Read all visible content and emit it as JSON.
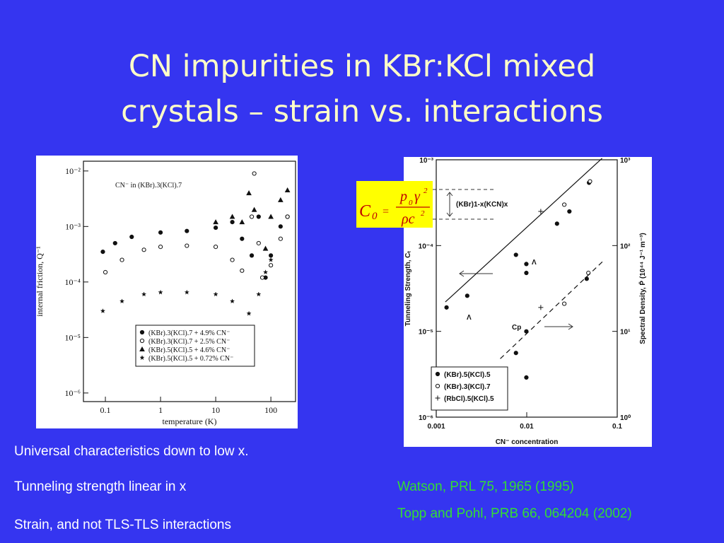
{
  "title_lines": [
    "CN impurities in KBr:KCl mixed",
    "crystals – strain vs. interactions"
  ],
  "bullets": [
    "Universal characteristics down to low x.",
    "Tunneling strength linear in x",
    "Strain, and not TLS-TLS interactions"
  ],
  "references": [
    "Watson, PRL 75, 1965 (1995)",
    "Topp and Pohl, PRB 66, 064204 (2002)"
  ],
  "formula": {
    "lhs": "C",
    "lhs_sub": "0",
    "equals": "=",
    "num_a": "p",
    "num_sub": "0",
    "num_b": "γ",
    "num_sup": "2",
    "den_a": "ρc",
    "den_sup": "2"
  },
  "chart_data": [
    {
      "type": "scatter",
      "xlabel": "temperature (K)",
      "ylabel": "internal friction, Q⁻¹",
      "annotation": "CN⁻ in (KBr).3(KCl).7",
      "log_x": true,
      "log_y": true,
      "legend": "lower center",
      "xlim": [
        0.04,
        280
      ],
      "ylim": [
        7e-07,
        0.015
      ],
      "xticks": [
        0.1,
        1,
        10,
        100
      ],
      "yticks": [
        {
          "value": 1e-06,
          "label": "10⁻⁶"
        },
        {
          "value": 1e-05,
          "label": "10⁻⁵"
        },
        {
          "value": 0.0001,
          "label": "10⁻⁴"
        },
        {
          "value": 0.001,
          "label": "10⁻³"
        },
        {
          "value": 0.01,
          "label": "10⁻²"
        }
      ],
      "series": [
        {
          "name": "(KBr).3(KCl).7 + 4.9% CN⁻",
          "marker": "filled-circle",
          "color": "#111111",
          "x": [
            0.09,
            0.15,
            0.3,
            1,
            3,
            10,
            20,
            30,
            45,
            60,
            80,
            100,
            150,
            200
          ],
          "values": [
            0.00035,
            0.0005,
            0.00065,
            0.00078,
            0.00083,
            0.00095,
            0.0012,
            0.0006,
            0.0003,
            0.0015,
            0.00012,
            0.0003,
            0.001,
            0.0015
          ]
        },
        {
          "name": "(KBr).3(KCl).7 + 2.5% CN⁻",
          "marker": "open-circle",
          "color": "#111111",
          "x": [
            0.1,
            0.2,
            0.5,
            1,
            3,
            10,
            20,
            30,
            45,
            50,
            60,
            70,
            100,
            150,
            200
          ],
          "values": [
            0.00015,
            0.00025,
            0.00038,
            0.00043,
            0.00045,
            0.00043,
            0.00025,
            0.00016,
            0.0015,
            0.009,
            0.0005,
            0.00012,
            0.0002,
            0.0006,
            0.0015
          ]
        },
        {
          "name": "(KBr).5(KCl).5 + 4.6% CN⁻",
          "marker": "triangle",
          "color": "#111111",
          "x": [
            10,
            20,
            30,
            40,
            50,
            80,
            100,
            150,
            200
          ],
          "values": [
            0.0012,
            0.0015,
            0.0012,
            0.004,
            0.002,
            0.0004,
            0.0015,
            0.003,
            0.0045
          ]
        },
        {
          "name": "(KBr).5(KCl).5 + 0.72% CN⁻",
          "marker": "star",
          "color": "#111111",
          "x": [
            0.09,
            0.2,
            0.5,
            1,
            3,
            10,
            20,
            40,
            60,
            80,
            100
          ],
          "values": [
            3e-05,
            4.5e-05,
            6e-05,
            6.5e-05,
            6.5e-05,
            6e-05,
            4.5e-05,
            2.7e-05,
            6e-05,
            0.00015,
            0.00025
          ]
        }
      ]
    },
    {
      "type": "scatter",
      "xlabel": "CN⁻ concentration",
      "ylabel": "Tunneling Strength, Cₜ",
      "y2label": "Spectral Density, P̄ (10⁴⁴ J⁻¹ m⁻³)",
      "log_x": true,
      "log_y": true,
      "legend": "lower left",
      "annotations": [
        "(KBr)1-x(KCN)x",
        "Λ",
        "Λ",
        "Cp"
      ],
      "xlim": [
        0.001,
        0.1
      ],
      "ylim": [
        1e-06,
        0.001
      ],
      "y2lim": [
        1,
        1000
      ],
      "xticks": [
        0.001,
        0.01,
        0.1
      ],
      "yticks": [
        {
          "value": 1e-06,
          "label": "10⁻⁶"
        },
        {
          "value": 1e-05,
          "label": "10⁻⁵"
        },
        {
          "value": 0.0001,
          "label": "10⁻⁴"
        },
        {
          "value": 0.001,
          "label": "10⁻³"
        }
      ],
      "y2ticks": [
        {
          "value": 1,
          "label": "10⁰"
        },
        {
          "value": 10,
          "label": "10¹"
        },
        {
          "value": 100,
          "label": "10²"
        },
        {
          "value": 1000,
          "label": "10³"
        }
      ],
      "series": [
        {
          "name": "(KBr).5(KCl).5",
          "marker": "filled-circle",
          "color": "#111111",
          "x": [
            0.0013,
            0.0022,
            0.0076,
            0.0099,
            0.0099,
            0.0216,
            0.0296,
            0.0488,
            0.0099,
            0.0076,
            0.0099,
            0.046
          ],
          "values": [
            1.9e-05,
            2.6e-05,
            7.8e-05,
            6.1e-05,
            4.8e-05,
            0.00018,
            0.00025,
            0.00054,
            1e-05,
            5.6e-06,
            2.9e-06,
            4.1e-05
          ]
        },
        {
          "name": "(KBr).3(KCl).7",
          "marker": "open-circle",
          "color": "#111111",
          "x": [
            0.05,
            0.026,
            0.048,
            0.026
          ],
          "values": [
            0.00056,
            0.0003,
            4.8e-05,
            2.1e-05
          ]
        },
        {
          "name": "(RbCl).5(KCl).5",
          "marker": "plus",
          "color": "#111111",
          "x": [
            0.0143,
            0.0143
          ],
          "values": [
            0.00025,
            1.9e-05
          ]
        },
        {
          "marker": "solid-line",
          "color": "#111111",
          "x": [
            0.00126,
            0.068
          ],
          "values": [
            2.2e-05,
            0.00104
          ]
        },
        {
          "marker": "dashed-line",
          "color": "#111111",
          "x": [
            0.0051,
            0.072
          ],
          "values": [
            4.8e-06,
            6.8e-05
          ]
        }
      ]
    }
  ]
}
